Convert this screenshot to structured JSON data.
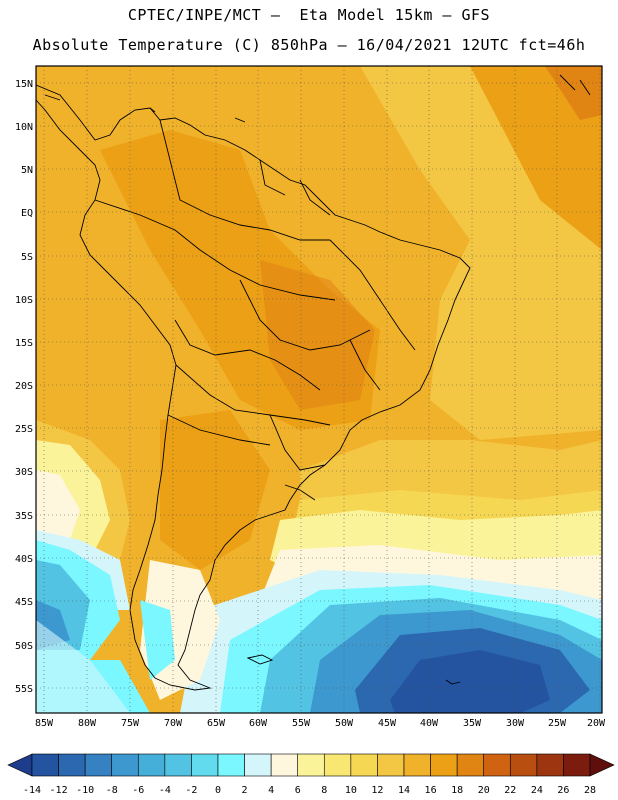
{
  "header": {
    "line1": "CPTEC/INPE/MCT –  Eta Model 15km – GFS",
    "line2": "Absolute Temperature (C) 850hPa – 16/04/2021 12UTC fct=46h"
  },
  "axes": {
    "lat_labels": [
      "15N",
      "10N",
      "5N",
      "EQ",
      "5S",
      "10S",
      "15S",
      "20S",
      "25S",
      "30S",
      "35S",
      "40S",
      "45S",
      "50S",
      "55S"
    ],
    "lon_labels": [
      "85W",
      "80W",
      "75W",
      "70W",
      "65W",
      "60W",
      "55W",
      "50W",
      "45W",
      "40W",
      "35W",
      "30W",
      "25W",
      "20W"
    ]
  },
  "colorbar": {
    "ticks": [
      "-14",
      "-12",
      "-10",
      "-8",
      "-6",
      "-4",
      "-2",
      "0",
      "2",
      "4",
      "6",
      "8",
      "10",
      "12",
      "14",
      "16",
      "18",
      "20",
      "22",
      "24",
      "26",
      "28"
    ],
    "colors": [
      "#1e3c8c",
      "#24539f",
      "#2b68b0",
      "#3581c2",
      "#3d98cf",
      "#45aed9",
      "#52c3e3",
      "#62dbee",
      "#7af7ff",
      "#d4f6fb",
      "#fff6de",
      "#fbf39a",
      "#f9e774",
      "#f6d754",
      "#f3c644",
      "#f1b22b",
      "#eca016",
      "#e08414",
      "#cf6312",
      "#b84e10",
      "#9c3510",
      "#7c1c0e",
      "#5e0f0c"
    ]
  }
}
